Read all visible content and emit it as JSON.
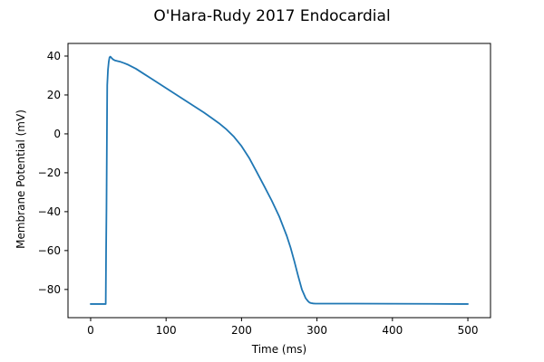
{
  "chart_data": {
    "type": "line",
    "title": "O'Hara-Rudy 2017 Endocardial",
    "xlabel": "Time (ms)",
    "ylabel": "Membrane Potential (mV)",
    "xlim": [
      -30,
      530
    ],
    "ylim": [
      -94.5,
      46.5
    ],
    "xticks": [
      0,
      100,
      200,
      300,
      400,
      500
    ],
    "yticks": [
      -80,
      -60,
      -40,
      -20,
      0,
      20,
      40
    ],
    "xtick_labels": [
      "0",
      "100",
      "200",
      "300",
      "400",
      "500"
    ],
    "ytick_labels": [
      "−80",
      "−60",
      "−40",
      "−20",
      "0",
      "20",
      "40"
    ],
    "grid": false,
    "series": [
      {
        "color": "#1f77b4",
        "x": [
          0,
          10,
          20,
          20.5,
          21,
          21.5,
          22,
          23,
          24,
          25,
          26,
          27,
          28,
          30,
          32,
          35,
          40,
          45,
          50,
          60,
          70,
          80,
          90,
          100,
          110,
          120,
          130,
          140,
          150,
          160,
          170,
          180,
          190,
          200,
          210,
          220,
          230,
          240,
          250,
          260,
          265,
          270,
          275,
          280,
          285,
          288,
          290,
          292,
          295,
          298,
          300,
          305,
          310,
          350,
          400,
          450,
          500
        ],
        "y": [
          -87.5,
          -87.5,
          -87.5,
          -60,
          -38,
          -5,
          25,
          33,
          37,
          39.3,
          39.7,
          39.4,
          38.9,
          38.2,
          37.8,
          37.5,
          37,
          36.3,
          35.5,
          33.5,
          31,
          28.5,
          26,
          23.5,
          21,
          18.5,
          16,
          13.5,
          11,
          8.3,
          5.5,
          2.3,
          -1.5,
          -6.3,
          -12.3,
          -19.5,
          -26.8,
          -34.3,
          -42.5,
          -52.5,
          -58.5,
          -65.5,
          -73,
          -80,
          -84.5,
          -86,
          -86.7,
          -87,
          -87.2,
          -87.3,
          -87.3,
          -87.3,
          -87.3,
          -87.3,
          -87.35,
          -87.4,
          -87.5
        ]
      }
    ]
  }
}
